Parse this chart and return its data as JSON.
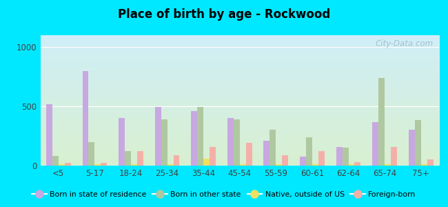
{
  "title": "Place of birth by age - Rockwood",
  "categories": [
    "<5",
    "5-17",
    "18-24",
    "25-34",
    "35-44",
    "45-54",
    "55-59",
    "60-61",
    "62-64",
    "65-74",
    "75+"
  ],
  "series": {
    "Born in state of residence": [
      520,
      800,
      400,
      495,
      460,
      400,
      210,
      75,
      160,
      365,
      300
    ],
    "Born in other state": [
      80,
      200,
      120,
      390,
      495,
      390,
      305,
      240,
      150,
      740,
      385
    ],
    "Native, outside of US": [
      10,
      10,
      10,
      10,
      60,
      10,
      10,
      10,
      10,
      10,
      10
    ],
    "Foreign-born": [
      25,
      25,
      120,
      90,
      160,
      190,
      90,
      120,
      30,
      155,
      55
    ]
  },
  "colors": {
    "Born in state of residence": "#c8a8e0",
    "Born in other state": "#b0c8a0",
    "Native, outside of US": "#f0e060",
    "Foreign-born": "#f4b0a8"
  },
  "ylim": [
    0,
    1100
  ],
  "yticks": [
    0,
    500,
    1000
  ],
  "bg_top": "#d0eef8",
  "bg_bottom": "#d8f0d0",
  "outer_bg": "#00e8ff",
  "watermark": "City-Data.com",
  "legend_labels": [
    "Born in state of residence",
    "Born in other state",
    "Native, outside of US",
    "Foreign-born"
  ]
}
